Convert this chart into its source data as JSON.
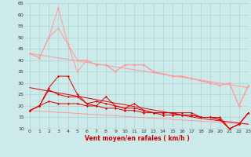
{
  "x": [
    0,
    1,
    2,
    3,
    4,
    5,
    6,
    7,
    8,
    9,
    10,
    11,
    12,
    13,
    14,
    15,
    16,
    17,
    18,
    19,
    20,
    21,
    22,
    23
  ],
  "line_upper_zigzag1": [
    43,
    41,
    50,
    54,
    47,
    40,
    40,
    38,
    38,
    35,
    38,
    38,
    38,
    35,
    34,
    33,
    33,
    32,
    31,
    30,
    29,
    30,
    20,
    29
  ],
  "line_upper_zigzag2": [
    43,
    41,
    50,
    63,
    47,
    35,
    40,
    38,
    38,
    35,
    38,
    38,
    38,
    35,
    34,
    33,
    33,
    32,
    31,
    30,
    29,
    30,
    20,
    29
  ],
  "line_trend_top": [
    43,
    42.3,
    41.7,
    41.0,
    40.4,
    39.7,
    39.1,
    38.4,
    37.8,
    37.1,
    36.5,
    35.8,
    35.2,
    34.5,
    33.9,
    33.2,
    32.6,
    31.9,
    31.3,
    30.6,
    30.0,
    29.3,
    28.7,
    28.0
  ],
  "line_trend_bot": [
    18,
    17.7,
    17.5,
    17.2,
    17.0,
    16.7,
    16.4,
    16.2,
    15.9,
    15.7,
    15.4,
    15.1,
    14.9,
    14.6,
    14.4,
    14.1,
    13.8,
    13.6,
    13.3,
    13.1,
    12.8,
    12.5,
    12.3,
    12.0
  ],
  "line_dark1": [
    18,
    20,
    28,
    33,
    33,
    25,
    21,
    20,
    24,
    20,
    19,
    21,
    18,
    17,
    17,
    17,
    17,
    17,
    15,
    15,
    14,
    10,
    12,
    17
  ],
  "line_dark2": [
    18,
    20,
    27,
    25,
    24,
    24,
    21,
    22,
    21,
    20,
    19,
    19,
    18,
    17,
    17,
    17,
    16,
    16,
    15,
    15,
    15,
    10,
    12,
    17
  ],
  "line_dark3": [
    18,
    20,
    22,
    21,
    21,
    21,
    20,
    20,
    19,
    19,
    18,
    18,
    17,
    17,
    16,
    16,
    16,
    16,
    15,
    15,
    14,
    10,
    12,
    17
  ],
  "line_dark_trend": [
    28,
    27.2,
    26.5,
    25.7,
    25.0,
    24.2,
    23.5,
    22.7,
    22.0,
    21.2,
    20.5,
    19.7,
    19.0,
    18.2,
    17.5,
    16.7,
    16.0,
    15.2,
    14.5,
    14.0,
    13.5,
    13.0,
    12.5,
    12.0
  ],
  "bg_color": "#cceaea",
  "grid_color": "#aacccc",
  "axis_label": "Vent moyen/en rafales ( km/h )",
  "xlabel_color": "#cc0000",
  "color_light": "#ff9999",
  "color_dark": "#dd0000",
  "ylim": [
    10,
    65
  ],
  "xlim": [
    -0.5,
    23
  ],
  "yticks": [
    10,
    15,
    20,
    25,
    30,
    35,
    40,
    45,
    50,
    55,
    60,
    65
  ],
  "xticks": [
    0,
    1,
    2,
    3,
    4,
    5,
    6,
    7,
    8,
    9,
    10,
    11,
    12,
    13,
    14,
    15,
    16,
    17,
    18,
    19,
    20,
    21,
    22,
    23
  ]
}
